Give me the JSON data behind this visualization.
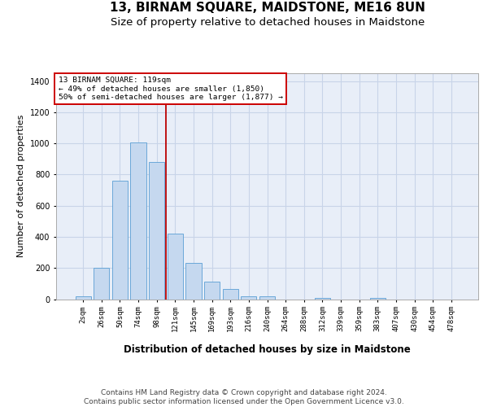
{
  "title": "13, BIRNAM SQUARE, MAIDSTONE, ME16 8UN",
  "subtitle": "Size of property relative to detached houses in Maidstone",
  "xlabel": "Distribution of detached houses by size in Maidstone",
  "ylabel": "Number of detached properties",
  "footer_line1": "Contains HM Land Registry data © Crown copyright and database right 2024.",
  "footer_line2": "Contains public sector information licensed under the Open Government Licence v3.0.",
  "categories": [
    "2sqm",
    "26sqm",
    "50sqm",
    "74sqm",
    "98sqm",
    "121sqm",
    "145sqm",
    "169sqm",
    "193sqm",
    "216sqm",
    "240sqm",
    "264sqm",
    "288sqm",
    "312sqm",
    "339sqm",
    "359sqm",
    "383sqm",
    "407sqm",
    "430sqm",
    "454sqm",
    "478sqm"
  ],
  "values": [
    20,
    200,
    760,
    1005,
    880,
    420,
    235,
    110,
    65,
    20,
    20,
    0,
    0,
    10,
    0,
    0,
    10,
    0,
    0,
    0,
    0
  ],
  "bar_color": "#c5d8ef",
  "bar_edge_color": "#5a9fd4",
  "vline_x_idx": 4.52,
  "vline_color": "#bb0000",
  "annotation_line1": "13 BIRNAM SQUARE: 119sqm",
  "annotation_line2": "← 49% of detached houses are smaller (1,850)",
  "annotation_line3": "50% of semi-detached houses are larger (1,877) →",
  "annotation_box_facecolor": "#ffffff",
  "annotation_box_edgecolor": "#cc0000",
  "ylim_min": 0,
  "ylim_max": 1450,
  "yticks": [
    0,
    200,
    400,
    600,
    800,
    1000,
    1200,
    1400
  ],
  "grid_color": "#c8d4e8",
  "plot_bg_color": "#e8eef8",
  "title_fontsize": 11,
  "subtitle_fontsize": 9.5,
  "axis_label_fontsize": 8.5,
  "ylabel_fontsize": 8,
  "tick_fontsize": 6.5,
  "footer_fontsize": 6.5
}
